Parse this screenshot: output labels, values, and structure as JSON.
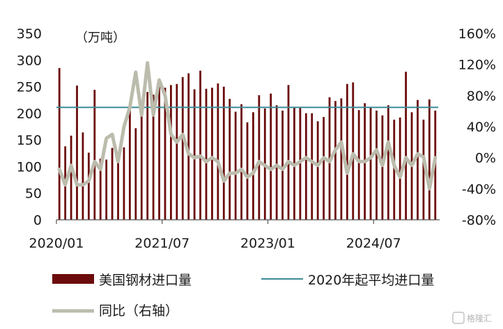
{
  "chart_data": {
    "type": "bar",
    "unit_label": "（万吨）",
    "x_tick_labels": [
      "2020/01",
      "2021/07",
      "2023/01",
      "2024/07"
    ],
    "x_tick_index": [
      0,
      18,
      36,
      54
    ],
    "y_left": {
      "min": 0,
      "max": 350,
      "ticks": [
        0,
        50,
        100,
        150,
        200,
        250,
        300,
        350
      ]
    },
    "y_right": {
      "min": -80,
      "max": 160,
      "ticks": [
        "-80%",
        "-40%",
        "0%",
        "40%",
        "80%",
        "120%",
        "160%"
      ],
      "tick_values": [
        -80,
        -40,
        0,
        40,
        80,
        120,
        160
      ]
    },
    "grid": false,
    "legend_position": "bottom",
    "series": [
      {
        "name": "美国钢材进口量",
        "kind": "bar",
        "axis": "left",
        "color": "#6b0b0b",
        "values": [
          285,
          138,
          158,
          252,
          164,
          126,
          244,
          115,
          113,
          135,
          125,
          136,
          220,
          172,
          210,
          240,
          235,
          250,
          248,
          253,
          255,
          268,
          275,
          245,
          280,
          246,
          248,
          256,
          250,
          227,
          203,
          217,
          183,
          202,
          234,
          209,
          237,
          215,
          205,
          253,
          212,
          210,
          200,
          200,
          185,
          193,
          230,
          223,
          228,
          255,
          258,
          206,
          219,
          212,
          205,
          196,
          215,
          188,
          192,
          278,
          202,
          225,
          188,
          226,
          205
        ]
      },
      {
        "name": "2020年起平均进口量",
        "kind": "hline",
        "axis": "left",
        "color": "#3a8a96",
        "value": 211
      },
      {
        "name": "同比（右轴）",
        "kind": "line",
        "axis": "right",
        "color": "#bcbcad",
        "values": [
          -15,
          -35,
          -10,
          -35,
          -35,
          -30,
          -5,
          -15,
          25,
          30,
          -5,
          40,
          65,
          110,
          55,
          122,
          55,
          100,
          80,
          30,
          20,
          30,
          5,
          0,
          2,
          -5,
          0,
          -5,
          -30,
          -20,
          -20,
          -15,
          -25,
          -20,
          -5,
          -10,
          -15,
          -10,
          -15,
          -5,
          -10,
          -5,
          0,
          -5,
          -10,
          0,
          -5,
          10,
          20,
          -20,
          5,
          -5,
          -5,
          0,
          10,
          -10,
          20,
          -10,
          -25,
          0,
          -10,
          5,
          1,
          -40,
          0
        ]
      }
    ]
  },
  "legend": {
    "items": [
      "美国钢材进口量",
      "2020年起平均进口量",
      "同比（右轴）"
    ]
  },
  "watermark": {
    "text": "格隆汇"
  }
}
